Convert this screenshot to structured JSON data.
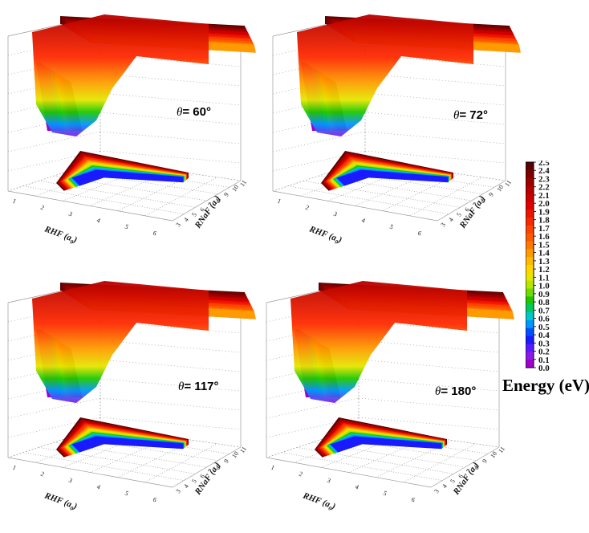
{
  "chart_data": {
    "type": "surface3d",
    "title": "",
    "panels": [
      {
        "theta_label": "= 60°",
        "theta_symbol": "θ"
      },
      {
        "theta_label": "= 72°",
        "theta_symbol": "θ"
      },
      {
        "theta_label": "= 117°",
        "theta_symbol": "θ"
      },
      {
        "theta_label": "= 180°",
        "theta_symbol": "θ"
      }
    ],
    "x_axis": {
      "label": "RHF (a",
      "subscript": "0",
      "close": ")",
      "ticks": [
        "1",
        "2",
        "3",
        "4",
        "5",
        "6"
      ]
    },
    "y_axis": {
      "label": "RNaF (a",
      "subscript": "0",
      "close": ")",
      "ticks": [
        "3",
        "4",
        "5",
        "6",
        "7",
        "8",
        "9",
        "10",
        "11"
      ]
    },
    "z_range": [
      0.0,
      2.5
    ],
    "colorbar": {
      "title": "Energy (eV)",
      "ticks": [
        "2.5",
        "2.4",
        "2.3",
        "2.2",
        "2.1",
        "2.0",
        "1.9",
        "1.8",
        "1.7",
        "1.6",
        "1.5",
        "1.4",
        "1.3",
        "1.2",
        "1.1",
        "1.0",
        "0.9",
        "0.8",
        "0.7",
        "0.6",
        "0.5",
        "0.4",
        "0.3",
        "0.2",
        "0.1",
        "0.0"
      ],
      "colors": [
        "#5a0000",
        "#7a0000",
        "#9a0000",
        "#b40000",
        "#cc0000",
        "#e00000",
        "#ee1500",
        "#f52a00",
        "#fa4400",
        "#ff5a00",
        "#ff7a00",
        "#ff9a00",
        "#ffbb00",
        "#ffd600",
        "#e6e600",
        "#b4e600",
        "#6edc00",
        "#1ec800",
        "#00c864",
        "#00c8c8",
        "#0096ff",
        "#0050ff",
        "#1a1aff",
        "#5a1aff",
        "#8a1ae6",
        "#a000c8"
      ]
    }
  }
}
